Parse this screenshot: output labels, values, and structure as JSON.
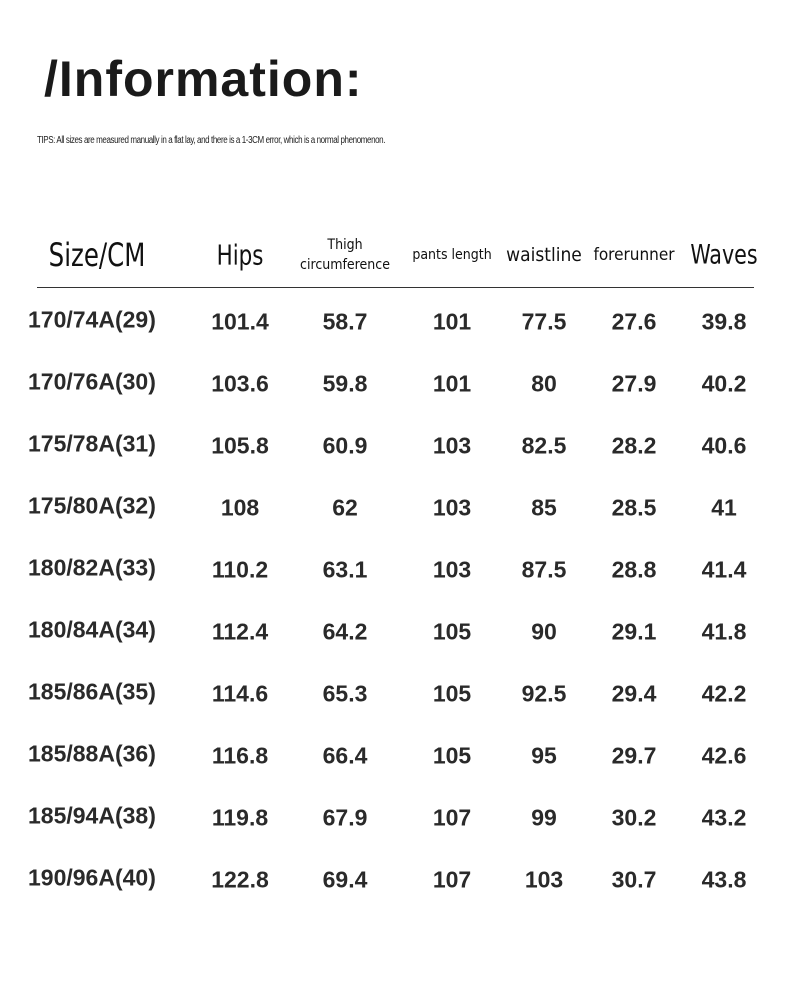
{
  "header": {
    "title": "/Information:",
    "tips": "TIPS: All sizes are measured manually in a flat lay, and there is a 1-3CM error, which is a normal phenomenon."
  },
  "table": {
    "columns": [
      "Size/CM",
      "Hips",
      "Thigh circumference",
      "pants length",
      "waistline",
      "forerunner",
      "Waves"
    ],
    "rows": [
      [
        "170/74A(29)",
        "101.4",
        "58.7",
        "101",
        "77.5",
        "27.6",
        "39.8"
      ],
      [
        "170/76A(30)",
        "103.6",
        "59.8",
        "101",
        "80",
        "27.9",
        "40.2"
      ],
      [
        "175/78A(31)",
        "105.8",
        "60.9",
        "103",
        "82.5",
        "28.2",
        "40.6"
      ],
      [
        "175/80A(32)",
        "108",
        "62",
        "103",
        "85",
        "28.5",
        "41"
      ],
      [
        "180/82A(33)",
        "110.2",
        "63.1",
        "103",
        "87.5",
        "28.8",
        "41.4"
      ],
      [
        "180/84A(34)",
        "112.4",
        "64.2",
        "105",
        "90",
        "29.1",
        "41.8"
      ],
      [
        "185/86A(35)",
        "114.6",
        "65.3",
        "105",
        "92.5",
        "29.4",
        "42.2"
      ],
      [
        "185/88A(36)",
        "116.8",
        "66.4",
        "105",
        "95",
        "29.7",
        "42.6"
      ],
      [
        "185/94A(38)",
        "119.8",
        "67.9",
        "107",
        "99",
        "30.2",
        "43.2"
      ],
      [
        "190/96A(40)",
        "122.8",
        "69.4",
        "107",
        "103",
        "30.7",
        "43.8"
      ]
    ]
  }
}
